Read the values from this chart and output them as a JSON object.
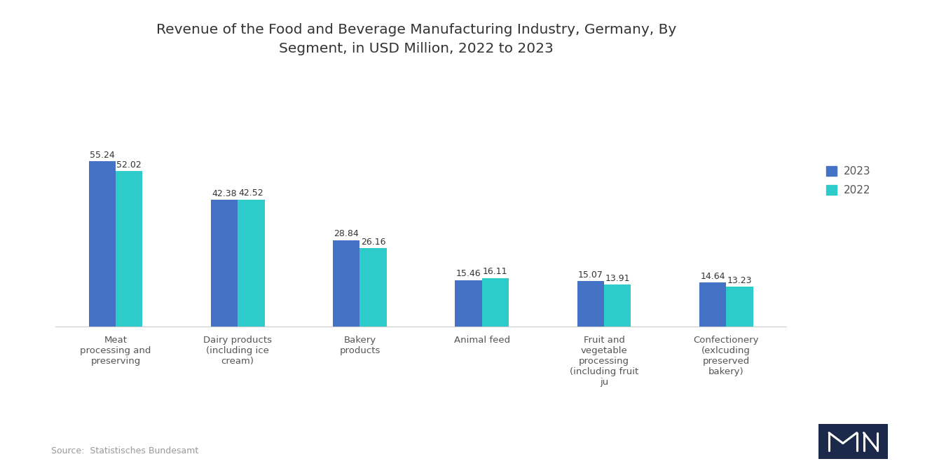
{
  "title": "Revenue of the Food and Beverage Manufacturing Industry, Germany, By\nSegment, in USD Million, 2022 to 2023",
  "categories": [
    "Meat\nprocessing and\npreserving",
    "Dairy products\n(including ice\ncream)",
    "Bakery\nproducts",
    "Animal feed",
    "Fruit and\nvegetable\nprocessing\n(including fruit\nju",
    "Confectionery\n(exlcuding\npreserved\nbakery)"
  ],
  "values_2023": [
    55.24,
    42.38,
    28.84,
    15.46,
    15.07,
    14.64
  ],
  "values_2022": [
    52.02,
    42.52,
    26.16,
    16.11,
    13.91,
    13.23
  ],
  "color_2023": "#4472C4",
  "color_2022": "#2ECBCB",
  "background_color": "#ffffff",
  "title_fontsize": 14.5,
  "label_fontsize": 9.5,
  "bar_value_fontsize": 9,
  "legend_fontsize": 11,
  "source_text": "Source:  Statistisches Bundesamt",
  "ylim": [
    0,
    75
  ],
  "bar_width": 0.22
}
